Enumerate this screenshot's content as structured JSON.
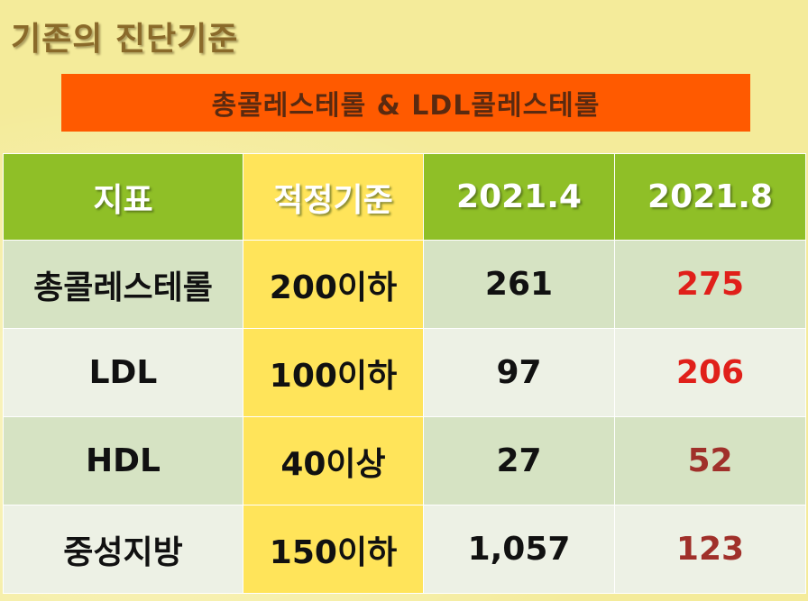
{
  "title": "기존의 진단기준",
  "banner": "총콜레스테롤 & LDL콜레스테롤",
  "table": {
    "headers": [
      "지표",
      "적정기준",
      "2021.4",
      "2021.8"
    ],
    "rows": [
      {
        "indicator": "총콜레스테롤",
        "standard": "200이하",
        "apr": "261",
        "aug": "275"
      },
      {
        "indicator": "LDL",
        "standard": "100이하",
        "apr": "97",
        "aug": "206"
      },
      {
        "indicator": "HDL",
        "standard": "40이상",
        "apr": "27",
        "aug": "52"
      },
      {
        "indicator": "중성지방",
        "standard": "150이하",
        "apr": "1,057",
        "aug": "123"
      }
    ]
  },
  "colors": {
    "header_green": "#8fbf27",
    "standard_yellow": "#ffe45a",
    "banner_orange": "#ff5a00",
    "highlight_red": "#e0201a",
    "dark_red": "#a0302a"
  }
}
